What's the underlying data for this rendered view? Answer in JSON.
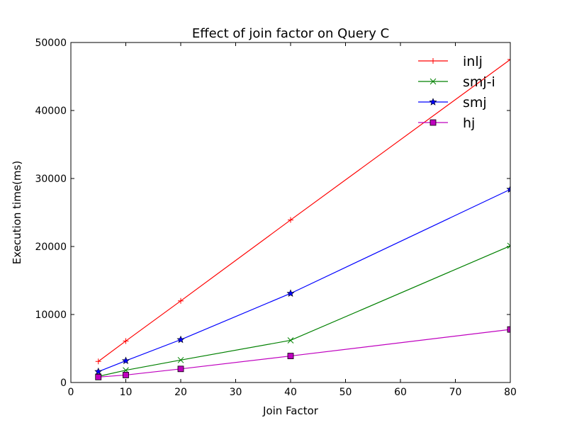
{
  "chart_data": {
    "type": "line",
    "title": "Effect of join factor on Query C",
    "xlabel": "Join Factor",
    "ylabel": "Execution time(ms)",
    "xlim": [
      0,
      80
    ],
    "ylim": [
      0,
      50000
    ],
    "xticks": [
      0,
      10,
      20,
      30,
      40,
      50,
      60,
      70,
      80
    ],
    "yticks": [
      0,
      10000,
      20000,
      30000,
      40000,
      50000
    ],
    "grid": false,
    "legend_position": "top-right",
    "x": [
      5,
      10,
      20,
      40,
      80
    ],
    "series": [
      {
        "name": "inlj",
        "color": "#ff0000",
        "marker": "plus",
        "values": [
          3100,
          6100,
          12000,
          23900,
          47500
        ]
      },
      {
        "name": "smj-i",
        "color": "#008000",
        "marker": "x",
        "values": [
          900,
          1800,
          3300,
          6200,
          20100
        ]
      },
      {
        "name": "smj",
        "color": "#0000ff",
        "marker": "star",
        "values": [
          1600,
          3200,
          6300,
          13100,
          28400
        ]
      },
      {
        "name": "hj",
        "color": "#bf00bf",
        "marker": "square",
        "values": [
          800,
          1100,
          2000,
          3900,
          7800
        ]
      }
    ]
  }
}
